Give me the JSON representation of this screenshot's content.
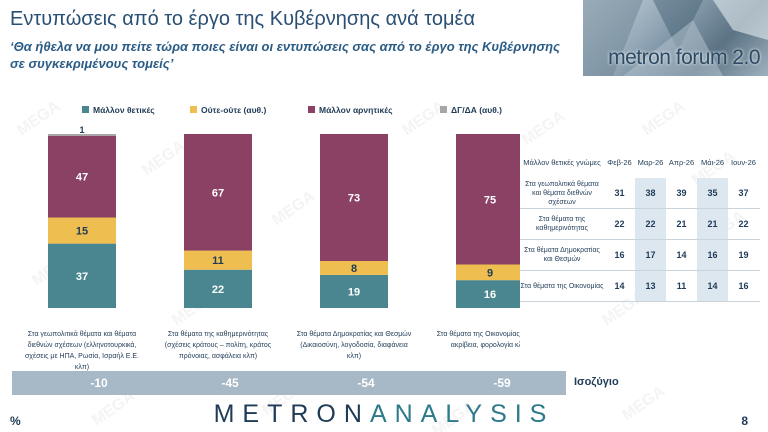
{
  "header": {
    "title": "Εντυπώσεις από το έργο της Κυβέρνησης ανά τομέα",
    "subtitle": "‘Θα ήθελα να μου πείτε τώρα ποιες είναι οι εντυπώσεις σας από το έργο της Κυβέρνησης σε συγκεκριμένους τομείς’"
  },
  "brand": {
    "text": "metron forum 2.0"
  },
  "watermark_text": "MEGA",
  "colors": {
    "positive": "#4a868f",
    "neutral": "#eebe50",
    "negative": "#8a4163",
    "dk": "#a6a6a6",
    "balance_bar": "#a7b8c6"
  },
  "chart_data": {
    "type": "bar",
    "stacked": true,
    "legend_position": "top",
    "categories": [
      "Στα γεωπολιτικά θέματα και θέματα διεθνών σχέσεων (ελληνοτουρκικά, σχέσεις με ΗΠΑ, Ρωσία, Ισραήλ Ε.Ε. κλπ)",
      "Στα θέματα της καθημερινότητας (σχέσεις κράτους – πολίτη, κράτος πρόνοιας, ασφάλεια κλπ)",
      "Στα θέματα Δημοκρατίας και Θεσμών (Δικαιοσύνη, λογοδοσία, διαφάνεια κλπ)",
      "Στα θέματα της Οικονομίας (μισθοί ακρίβεια, φορολογία κλπ)"
    ],
    "series": [
      {
        "name": "Μάλλον θετικές",
        "values": [
          37,
          22,
          19,
          16
        ],
        "labels": [
          "37",
          "22",
          "19",
          "16"
        ]
      },
      {
        "name": "Ούτε-ούτε  (αυθ.)",
        "values": [
          15,
          11,
          8,
          9
        ],
        "labels": [
          "15",
          "11",
          "8",
          "9"
        ]
      },
      {
        "name": "Μάλλον αρνητικές",
        "values": [
          47,
          67,
          73,
          75
        ],
        "labels": [
          "47",
          "67",
          "73",
          "75"
        ]
      },
      {
        "name": "ΔΓ/ΔΑ (αυθ.)",
        "values": [
          1,
          0,
          0,
          0
        ],
        "labels": [
          "1",
          "",
          "",
          ""
        ]
      }
    ],
    "ylim": [
      0,
      100
    ]
  },
  "table": {
    "header_label": "Μάλλον θετικές γνώμες",
    "columns": [
      "Φεβ-26",
      "Μαρ-26",
      "Απρ-26",
      "Μάι-26",
      "Ιουν-26"
    ],
    "rows": [
      {
        "label": "Στα γεωπολιτικά θέματα και θέματα διεθνών σχέσεων",
        "values": [
          "31",
          "38",
          "39",
          "35",
          "37"
        ]
      },
      {
        "label": "Στα θέματα της καθημερινότητας",
        "values": [
          "22",
          "22",
          "21",
          "21",
          "22"
        ]
      },
      {
        "label": "Στα θέματα Δημοκρατίας και Θεσμών",
        "values": [
          "16",
          "17",
          "14",
          "16",
          "19"
        ]
      },
      {
        "label": "Στα θέματα της Οικονομίας",
        "values": [
          "14",
          "13",
          "11",
          "14",
          "16"
        ]
      }
    ]
  },
  "balance": {
    "label": "Ισοζύγιο",
    "values": [
      "-10",
      "-45",
      "-54",
      "-59"
    ]
  },
  "footer": {
    "logo_part1": "METRON",
    "logo_part2": "ANALYSIS",
    "percent": "%",
    "page_number": "8"
  }
}
